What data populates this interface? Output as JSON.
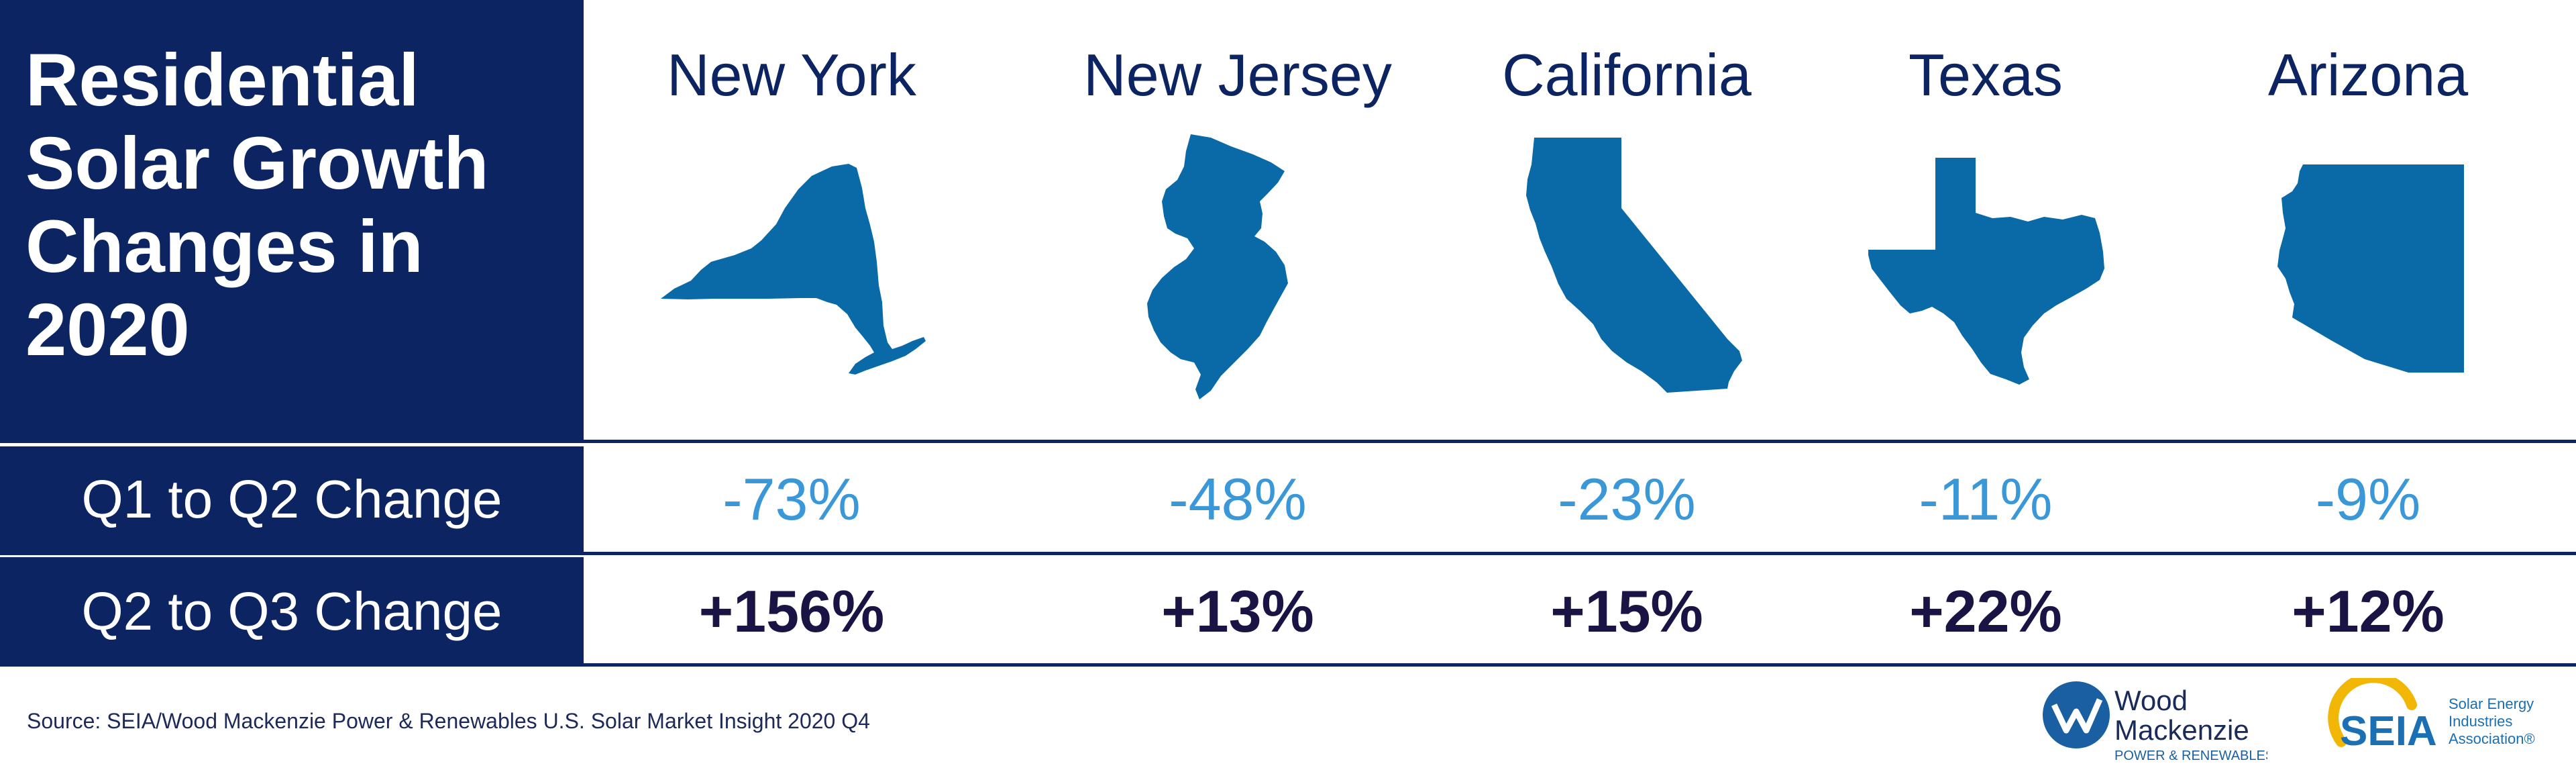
{
  "title": "Residential Solar Growth Changes in 2020",
  "rows": {
    "q1_q2_label": "Q1 to Q2 Change",
    "q2_q3_label": "Q2 to Q3 Change"
  },
  "states": [
    {
      "name": "New York",
      "q1_q2": "-73%",
      "q2_q3": "+156%"
    },
    {
      "name": "New Jersey",
      "q1_q2": "-48%",
      "q2_q3": "+13%"
    },
    {
      "name": "California",
      "q1_q2": "-23%",
      "q2_q3": "+15%"
    },
    {
      "name": "Texas",
      "q1_q2": "-11%",
      "q2_q3": "+22%"
    },
    {
      "name": "Arizona",
      "q1_q2": "-9%",
      "q2_q3": "+12%"
    }
  ],
  "source": "Source: SEIA/Wood Mackenzie Power & Renewables U.S. Solar Market Insight 2020 Q4",
  "logos": {
    "wood_mackenzie": {
      "line1": "Wood",
      "line2": "Mackenzie",
      "line3": "POWER & RENEWABLES"
    },
    "seia": {
      "mark": "SEIA",
      "line1": "Solar Energy",
      "line2": "Industries",
      "line3": "Association®"
    }
  },
  "colors": {
    "navy": "#0c2461",
    "state_fill": "#0a6aa8",
    "negative": "#3a97d8",
    "positive": "#1a1445",
    "seia_yellow": "#f2b705"
  },
  "chart_data": {
    "type": "table",
    "title": "Residential Solar Growth Changes in 2020",
    "columns": [
      "New York",
      "New Jersey",
      "California",
      "Texas",
      "Arizona"
    ],
    "series": [
      {
        "name": "Q1 to Q2 Change",
        "values": [
          -73,
          -48,
          -23,
          -11,
          -9
        ],
        "unit": "%"
      },
      {
        "name": "Q2 to Q3 Change",
        "values": [
          156,
          13,
          15,
          22,
          12
        ],
        "unit": "%"
      }
    ]
  }
}
